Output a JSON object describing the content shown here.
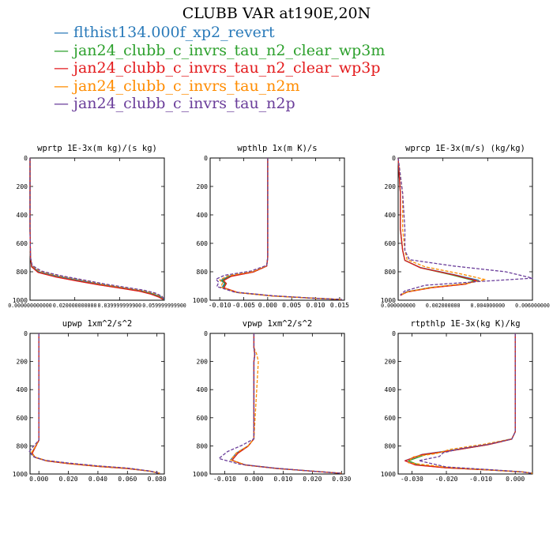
{
  "title": "CLUBB VAR at190E,20N",
  "colors": {
    "axis": "#000000"
  },
  "legend": [
    {
      "name": "flthist134.000f_xp2_revert",
      "color": "#2b7bba",
      "dash": "none"
    },
    {
      "name": "jan24_clubb_c_invrs_tau_n2_clear_wp3m",
      "color": "#2ca02c",
      "dash": "none"
    },
    {
      "name": "jan24_clubb_c_invrs_tau_n2_clear_wp3p",
      "color": "#e31a1c",
      "dash": "none"
    },
    {
      "name": "jan24_clubb_c_invrs_tau_n2m",
      "color": "#ff8c00",
      "dash": "4,2"
    },
    {
      "name": "jan24_clubb_c_invrs_tau_n2p",
      "color": "#6a3d9a",
      "dash": "4,2"
    }
  ],
  "chart_data": [
    {
      "type": "line",
      "title": "wprtp  1E-3x(m kg)/(s kg)",
      "xlim": [
        0.0,
        0.06
      ],
      "ylim": [
        1000,
        0
      ],
      "xticks": [
        0.0,
        0.02,
        0.04,
        0.06
      ],
      "xtick_labels": [
        "0.000000000000",
        "0.020000000000",
        "0.039999999900",
        "0.059999999900"
      ],
      "yticks": [
        0,
        200,
        400,
        600,
        800,
        1000
      ],
      "series": [
        {
          "x": [
            0,
            0,
            0.0002,
            0.0008,
            0.004,
            0.012,
            0.022,
            0.032,
            0.042,
            0.05,
            0.055,
            0.0585,
            0.06
          ],
          "y": [
            0,
            500,
            700,
            760,
            800,
            830,
            860,
            890,
            915,
            935,
            955,
            975,
            995
          ]
        },
        {
          "x": [
            0,
            0,
            0.0002,
            0.0007,
            0.0038,
            0.0115,
            0.0215,
            0.0315,
            0.0415,
            0.0495,
            0.0545,
            0.058,
            0.0597
          ],
          "y": [
            0,
            500,
            700,
            765,
            805,
            835,
            865,
            893,
            917,
            937,
            957,
            978,
            995
          ]
        },
        {
          "x": [
            0,
            0,
            0.0002,
            0.0007,
            0.0036,
            0.011,
            0.021,
            0.031,
            0.041,
            0.049,
            0.054,
            0.0575,
            0.0595
          ],
          "y": [
            0,
            500,
            700,
            765,
            805,
            835,
            865,
            893,
            917,
            937,
            958,
            978,
            995
          ]
        },
        {
          "x": [
            0,
            0,
            0.0002,
            0.0009,
            0.0045,
            0.0125,
            0.0225,
            0.0325,
            0.0425,
            0.0505,
            0.0555,
            0.059,
            0.0599
          ],
          "y": [
            0,
            500,
            700,
            758,
            798,
            828,
            858,
            888,
            913,
            933,
            953,
            975,
            995
          ]
        },
        {
          "x": [
            0,
            0,
            0.0002,
            0.001,
            0.005,
            0.013,
            0.023,
            0.033,
            0.043,
            0.051,
            0.056,
            0.059,
            0.06
          ],
          "y": [
            0,
            500,
            700,
            755,
            795,
            825,
            855,
            885,
            910,
            930,
            950,
            973,
            995
          ]
        }
      ]
    },
    {
      "type": "line",
      "title": "wpthlp  1x(m K)/s",
      "xlim": [
        -0.012,
        0.016
      ],
      "ylim": [
        1000,
        0
      ],
      "xticks": [
        -0.01,
        -0.005,
        0.0,
        0.005,
        0.01,
        0.015
      ],
      "xtick_labels": [
        "-0.010",
        "-0.005",
        "0.000",
        "0.005",
        "0.010",
        "0.015"
      ],
      "yticks": [
        0,
        200,
        400,
        600,
        800,
        1000
      ],
      "series": [
        {
          "x": [
            0,
            0,
            -0.0002,
            -0.003,
            -0.008,
            -0.0098,
            -0.009,
            -0.0095,
            -0.0065,
            0.001,
            0.009,
            0.0155
          ],
          "y": [
            0,
            700,
            760,
            800,
            830,
            860,
            880,
            910,
            945,
            970,
            985,
            995
          ]
        },
        {
          "x": [
            0,
            0,
            -0.0002,
            -0.003,
            -0.0078,
            -0.0095,
            -0.0088,
            -0.0093,
            -0.0063,
            0.001,
            0.009,
            0.0155
          ],
          "y": [
            0,
            700,
            760,
            802,
            832,
            862,
            882,
            912,
            946,
            970,
            985,
            995
          ]
        },
        {
          "x": [
            0,
            0,
            -0.0002,
            -0.003,
            -0.0076,
            -0.0092,
            -0.0086,
            -0.0091,
            -0.0062,
            0.001,
            0.009,
            0.0155
          ],
          "y": [
            0,
            700,
            760,
            802,
            832,
            862,
            882,
            912,
            946,
            970,
            985,
            995
          ]
        },
        {
          "x": [
            0,
            0,
            -0.0002,
            -0.003,
            -0.0082,
            -0.01,
            -0.0094,
            -0.0098,
            -0.0066,
            0.001,
            0.009,
            0.0155
          ],
          "y": [
            0,
            700,
            758,
            798,
            828,
            858,
            878,
            908,
            944,
            970,
            985,
            995
          ]
        },
        {
          "x": [
            0,
            0,
            -0.0002,
            -0.0035,
            -0.009,
            -0.0108,
            -0.0102,
            -0.0106,
            -0.007,
            0.0008,
            0.009,
            0.0155
          ],
          "y": [
            0,
            700,
            755,
            795,
            825,
            852,
            874,
            904,
            942,
            968,
            985,
            995
          ]
        }
      ]
    },
    {
      "type": "line",
      "title": "wprcp  1E-3x(m/s) (kg/kg)",
      "xlim": [
        0.0,
        0.006
      ],
      "ylim": [
        1000,
        0
      ],
      "xticks": [
        0.0,
        0.002,
        0.004,
        0.006
      ],
      "xtick_labels": [
        "0.000000000",
        "0.002000000",
        "0.004000000",
        "0.006000000"
      ],
      "yticks": [
        0,
        200,
        400,
        600,
        800,
        1000
      ],
      "series": [
        {
          "x": [
            0,
            0.0001,
            0.0001,
            0.0002,
            0.0003,
            0.001,
            0.0025,
            0.0036,
            0.003,
            0.0015,
            0.0004,
            0.0001
          ],
          "y": [
            0,
            250,
            500,
            650,
            720,
            770,
            820,
            860,
            885,
            910,
            940,
            965
          ]
        },
        {
          "x": [
            0,
            0.0001,
            0.0001,
            0.0002,
            0.0003,
            0.001,
            0.0024,
            0.0034,
            0.003,
            0.0014,
            0.0004,
            0.0001
          ],
          "y": [
            0,
            250,
            500,
            650,
            720,
            772,
            822,
            862,
            887,
            912,
            942,
            966
          ]
        },
        {
          "x": [
            0,
            0.0001,
            0.0001,
            0.0002,
            0.0003,
            0.001,
            0.0025,
            0.0035,
            0.003,
            0.0015,
            0.0004,
            0.0001
          ],
          "y": [
            0,
            250,
            500,
            650,
            720,
            772,
            822,
            862,
            887,
            912,
            942,
            966
          ]
        },
        {
          "x": [
            0,
            0.0002,
            0.0002,
            0.0003,
            0.0004,
            0.0012,
            0.0028,
            0.0039,
            0.0031,
            0.0016,
            0.0005,
            0.0001
          ],
          "y": [
            0,
            250,
            500,
            650,
            715,
            765,
            815,
            855,
            882,
            908,
            938,
            962
          ]
        },
        {
          "x": [
            0,
            0.0002,
            0.0003,
            0.0003,
            0.0005,
            0.0025,
            0.0048,
            0.006,
            0.0035,
            0.0012,
            0.0003,
            0.0001
          ],
          "y": [
            0,
            250,
            500,
            650,
            715,
            760,
            800,
            845,
            870,
            895,
            935,
            962
          ]
        }
      ]
    },
    {
      "type": "line",
      "title": "upwp  1xm^2/s^2",
      "xlim": [
        -0.006,
        0.085
      ],
      "ylim": [
        1000,
        0
      ],
      "xticks": [
        0.0,
        0.02,
        0.04,
        0.06,
        0.08
      ],
      "xtick_labels": [
        "0.000",
        "0.020",
        "0.040",
        "0.060",
        "0.080"
      ],
      "yticks": [
        0,
        200,
        400,
        600,
        800,
        1000
      ],
      "series": [
        {
          "x": [
            0,
            0,
            0,
            -0.002,
            -0.005,
            -0.003,
            0.005,
            0.02,
            0.04,
            0.06,
            0.075,
            0.082
          ],
          "y": [
            0,
            500,
            760,
            800,
            850,
            880,
            905,
            925,
            945,
            960,
            980,
            995
          ]
        },
        {
          "x": [
            0,
            0,
            0,
            -0.002,
            -0.0045,
            -0.0025,
            0.005,
            0.02,
            0.04,
            0.06,
            0.075,
            0.082
          ],
          "y": [
            0,
            500,
            760,
            800,
            852,
            882,
            906,
            926,
            946,
            961,
            980,
            995
          ]
        },
        {
          "x": [
            0,
            0,
            0,
            -0.002,
            -0.0045,
            -0.0025,
            0.005,
            0.02,
            0.04,
            0.06,
            0.075,
            0.082
          ],
          "y": [
            0,
            500,
            760,
            800,
            852,
            882,
            906,
            926,
            946,
            961,
            980,
            995
          ]
        },
        {
          "x": [
            0,
            0,
            0,
            -0.002,
            -0.005,
            -0.003,
            0.005,
            0.02,
            0.04,
            0.06,
            0.075,
            0.082
          ],
          "y": [
            0,
            500,
            760,
            798,
            848,
            878,
            904,
            924,
            944,
            959,
            979,
            995
          ]
        },
        {
          "x": [
            0,
            0,
            0,
            -0.003,
            -0.0065,
            -0.004,
            0.004,
            0.02,
            0.04,
            0.06,
            0.075,
            0.082
          ],
          "y": [
            0,
            500,
            760,
            795,
            840,
            875,
            902,
            922,
            942,
            958,
            978,
            995
          ]
        }
      ]
    },
    {
      "type": "line",
      "title": "vpwp  1xm^2/s^2",
      "xlim": [
        -0.015,
        0.031
      ],
      "ylim": [
        1000,
        0
      ],
      "xticks": [
        -0.01,
        0.0,
        0.01,
        0.02,
        0.03
      ],
      "xtick_labels": [
        "-0.010",
        "0.000",
        "0.010",
        "0.020",
        "0.030"
      ],
      "yticks": [
        0,
        200,
        400,
        600,
        800,
        1000
      ],
      "series": [
        {
          "x": [
            0,
            0,
            0.0003,
            0,
            0,
            -0.002,
            -0.006,
            -0.008,
            -0.003,
            0.008,
            0.02,
            0.03
          ],
          "y": [
            0,
            100,
            150,
            200,
            750,
            800,
            850,
            900,
            935,
            960,
            980,
            995
          ]
        },
        {
          "x": [
            0,
            0,
            0.0003,
            0,
            0,
            -0.002,
            -0.0055,
            -0.0075,
            -0.003,
            0.008,
            0.02,
            0.03
          ],
          "y": [
            0,
            100,
            150,
            200,
            750,
            802,
            852,
            902,
            936,
            961,
            980,
            995
          ]
        },
        {
          "x": [
            0,
            0,
            0.0003,
            0,
            0,
            -0.002,
            -0.0055,
            -0.0075,
            -0.003,
            0.008,
            0.02,
            0.03
          ],
          "y": [
            0,
            100,
            150,
            200,
            750,
            802,
            852,
            902,
            936,
            961,
            980,
            995
          ]
        },
        {
          "x": [
            0,
            0,
            0.001,
            0.0015,
            0,
            -0.002,
            -0.006,
            -0.008,
            -0.003,
            0.008,
            0.02,
            0.03
          ],
          "y": [
            0,
            100,
            150,
            200,
            750,
            800,
            850,
            900,
            935,
            960,
            980,
            995
          ]
        },
        {
          "x": [
            0,
            0,
            0.0003,
            0,
            0,
            -0.004,
            -0.009,
            -0.012,
            -0.005,
            0.007,
            0.02,
            0.03
          ],
          "y": [
            0,
            100,
            150,
            200,
            750,
            795,
            840,
            890,
            930,
            958,
            980,
            995
          ]
        }
      ]
    },
    {
      "type": "line",
      "title": "rtpthlp  1E-3x(kg K)/kg",
      "xlim": [
        -0.034,
        0.005
      ],
      "ylim": [
        1000,
        0
      ],
      "xticks": [
        -0.03,
        -0.02,
        -0.01,
        0.0
      ],
      "xtick_labels": [
        "-0.030",
        "-0.020",
        "-0.010",
        "0.000"
      ],
      "yticks": [
        0,
        200,
        400,
        600,
        800,
        1000
      ],
      "series": [
        {
          "x": [
            0,
            0,
            -0.001,
            -0.008,
            -0.018,
            -0.027,
            -0.032,
            -0.029,
            -0.02,
            -0.008,
            0.002,
            0.005
          ],
          "y": [
            0,
            700,
            750,
            790,
            830,
            860,
            905,
            935,
            955,
            970,
            985,
            995
          ]
        },
        {
          "x": [
            0,
            0,
            -0.001,
            -0.008,
            -0.018,
            -0.026,
            -0.031,
            -0.028,
            -0.02,
            -0.008,
            0.002,
            0.005
          ],
          "y": [
            0,
            700,
            752,
            792,
            832,
            862,
            906,
            936,
            956,
            971,
            985,
            995
          ]
        },
        {
          "x": [
            0,
            0,
            -0.001,
            -0.008,
            -0.018,
            -0.027,
            -0.032,
            -0.029,
            -0.02,
            -0.008,
            0.002,
            0.005
          ],
          "y": [
            0,
            700,
            752,
            792,
            832,
            862,
            906,
            936,
            956,
            971,
            985,
            995
          ]
        },
        {
          "x": [
            0,
            0,
            -0.001,
            -0.009,
            -0.019,
            -0.023,
            -0.03,
            -0.031,
            -0.02,
            -0.008,
            0.002,
            0.005
          ],
          "y": [
            0,
            700,
            750,
            788,
            825,
            855,
            880,
            920,
            952,
            970,
            985,
            995
          ]
        },
        {
          "x": [
            0,
            0,
            -0.001,
            -0.008,
            -0.016,
            -0.021,
            -0.022,
            -0.028,
            -0.02,
            -0.008,
            0.002,
            0.005
          ],
          "y": [
            0,
            700,
            752,
            790,
            820,
            850,
            875,
            905,
            950,
            968,
            985,
            995
          ]
        }
      ]
    }
  ]
}
